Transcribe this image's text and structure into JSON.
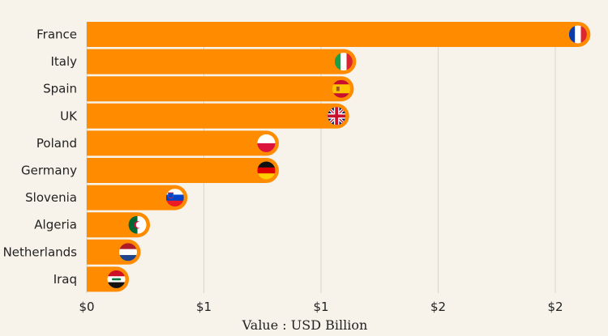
{
  "chart_data": {
    "type": "bar",
    "orientation": "horizontal",
    "categories": [
      "France",
      "Italy",
      "Spain",
      "UK",
      "Poland",
      "Germany",
      "Slovenia",
      "Algeria",
      "Netherlands",
      "Iraq"
    ],
    "values": [
      2.15,
      1.15,
      1.14,
      1.12,
      0.82,
      0.82,
      0.43,
      0.27,
      0.23,
      0.18
    ],
    "flag_icons": [
      "flag-france-icon",
      "flag-italy-icon",
      "flag-spain-icon",
      "flag-uk-icon",
      "flag-poland-icon",
      "flag-germany-icon",
      "flag-slovenia-icon",
      "flag-algeria-icon",
      "flag-netherlands-icon",
      "flag-iraq-icon"
    ],
    "xlim": [
      0,
      2.25
    ],
    "x_ticks": [
      0,
      0.5,
      1.0,
      1.5,
      2.0
    ],
    "x_tick_labels": [
      "$0",
      "$1",
      "$1",
      "$2",
      "$2"
    ],
    "xlabel": "Value : USD Billion",
    "title": "",
    "ylabel": "",
    "grid": "vertical",
    "legend": "none",
    "bar_color": "#ff8c00",
    "grid_color": "#d9d4cc"
  }
}
